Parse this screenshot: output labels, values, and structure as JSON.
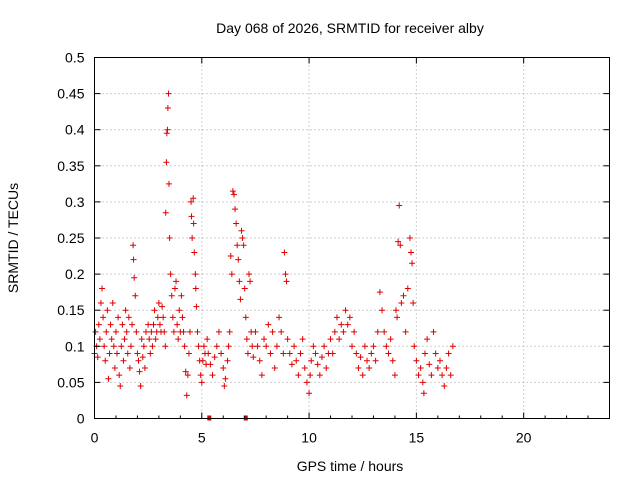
{
  "chart_data": {
    "type": "scatter",
    "title": "Day 068 of 2026, SRMTID for receiver alby",
    "xlabel": "GPS time / hours",
    "ylabel": "SRMTID / TECUs",
    "xlim": [
      0,
      24
    ],
    "ylim": [
      0,
      0.5
    ],
    "x_ticks": [
      "0",
      "5",
      "10",
      "15",
      "20"
    ],
    "y_ticks": [
      "0",
      "0.05",
      "0.1",
      "0.15",
      "0.2",
      "0.25",
      "0.3",
      "0.35",
      "0.4",
      "0.45",
      "0.5"
    ],
    "x_tick_values": [
      0,
      5,
      10,
      15,
      20
    ],
    "y_tick_values": [
      0,
      0.05,
      0.1,
      0.15,
      0.2,
      0.25,
      0.3,
      0.35,
      0.4,
      0.45,
      0.5
    ],
    "grid": true,
    "marker": "plus",
    "color": "#e00000",
    "series": [
      {
        "points": [
          [
            0.0,
            0.09
          ],
          [
            0.05,
            0.12
          ],
          [
            0.1,
            0.1
          ],
          [
            0.15,
            0.085
          ],
          [
            0.2,
            0.13
          ],
          [
            0.25,
            0.11
          ],
          [
            0.3,
            0.16
          ],
          [
            0.35,
            0.18
          ],
          [
            0.4,
            0.14
          ],
          [
            0.45,
            0.1
          ],
          [
            0.5,
            0.08
          ],
          [
            0.55,
            0.12
          ],
          [
            0.6,
            0.15
          ],
          [
            0.65,
            0.055
          ],
          [
            0.7,
            0.09
          ],
          [
            0.75,
            0.13
          ],
          [
            0.8,
            0.11
          ],
          [
            0.85,
            0.16
          ],
          [
            0.9,
            0.1
          ],
          [
            0.95,
            0.07
          ],
          [
            1.0,
            0.12
          ],
          [
            1.05,
            0.09
          ],
          [
            1.1,
            0.14
          ],
          [
            1.15,
            0.06
          ],
          [
            1.2,
            0.045
          ],
          [
            1.25,
            0.1
          ],
          [
            1.3,
            0.13
          ],
          [
            1.35,
            0.08
          ],
          [
            1.4,
            0.11
          ],
          [
            1.45,
            0.15
          ],
          [
            1.5,
            0.12
          ],
          [
            1.55,
            0.09
          ],
          [
            1.6,
            0.14
          ],
          [
            1.65,
            0.07
          ],
          [
            1.7,
            0.1
          ],
          [
            1.75,
            0.13
          ],
          [
            1.8,
            0.24
          ],
          [
            1.82,
            0.22
          ],
          [
            1.85,
            0.195
          ],
          [
            1.9,
            0.17
          ],
          [
            1.95,
            0.12
          ],
          [
            2.0,
            0.09
          ],
          [
            2.05,
            0.08
          ],
          [
            2.1,
            0.065
          ],
          [
            2.15,
            0.045
          ],
          [
            2.2,
            0.11
          ],
          [
            2.25,
            0.085
          ],
          [
            2.3,
            0.1
          ],
          [
            2.35,
            0.07
          ],
          [
            2.4,
            0.12
          ],
          [
            2.5,
            0.13
          ],
          [
            2.55,
            0.11
          ],
          [
            2.6,
            0.09
          ],
          [
            2.65,
            0.12
          ],
          [
            2.7,
            0.1
          ],
          [
            2.75,
            0.13
          ],
          [
            2.8,
            0.15
          ],
          [
            2.85,
            0.11
          ],
          [
            2.9,
            0.12
          ],
          [
            2.95,
            0.14
          ],
          [
            3.0,
            0.16
          ],
          [
            3.05,
            0.13
          ],
          [
            3.1,
            0.12
          ],
          [
            3.15,
            0.155
          ],
          [
            3.2,
            0.14
          ],
          [
            3.25,
            0.12
          ],
          [
            3.3,
            0.1
          ],
          [
            3.32,
            0.285
          ],
          [
            3.35,
            0.355
          ],
          [
            3.37,
            0.395
          ],
          [
            3.4,
            0.4
          ],
          [
            3.42,
            0.43
          ],
          [
            3.45,
            0.45
          ],
          [
            3.47,
            0.325
          ],
          [
            3.5,
            0.25
          ],
          [
            3.55,
            0.2
          ],
          [
            3.6,
            0.17
          ],
          [
            3.65,
            0.14
          ],
          [
            3.7,
            0.12
          ],
          [
            3.75,
            0.18
          ],
          [
            3.8,
            0.19
          ],
          [
            3.85,
            0.13
          ],
          [
            3.9,
            0.11
          ],
          [
            3.95,
            0.15
          ],
          [
            4.0,
            0.12
          ],
          [
            4.05,
            0.17
          ],
          [
            4.1,
            0.14
          ],
          [
            4.15,
            0.12
          ],
          [
            4.2,
            0.1
          ],
          [
            4.25,
            0.065
          ],
          [
            4.3,
            0.032
          ],
          [
            4.35,
            0.06
          ],
          [
            4.4,
            0.09
          ],
          [
            4.45,
            0.12
          ],
          [
            4.5,
            0.3
          ],
          [
            4.52,
            0.28
          ],
          [
            4.55,
            0.25
          ],
          [
            4.6,
            0.305
          ],
          [
            4.62,
            0.27
          ],
          [
            4.65,
            0.23
          ],
          [
            4.7,
            0.2
          ],
          [
            4.72,
            0.18
          ],
          [
            4.75,
            0.155
          ],
          [
            4.8,
            0.12
          ],
          [
            4.85,
            0.1
          ],
          [
            4.9,
            0.08
          ],
          [
            4.95,
            0.06
          ],
          [
            5.0,
            0.05
          ],
          [
            5.05,
            0.08
          ],
          [
            5.1,
            0.1
          ],
          [
            5.15,
            0.09
          ],
          [
            5.2,
            0.075
          ],
          [
            5.25,
            0.11
          ],
          [
            5.3,
            0.09
          ],
          [
            5.4,
            0.075
          ],
          [
            5.5,
            0.06
          ],
          [
            5.6,
            0.085
          ],
          [
            5.7,
            0.1
          ],
          [
            5.8,
            0.12
          ],
          [
            5.9,
            0.09
          ],
          [
            6.0,
            0.07
          ],
          [
            6.05,
            0.045
          ],
          [
            6.1,
            0.055
          ],
          [
            6.2,
            0.08
          ],
          [
            6.25,
            0.1
          ],
          [
            6.3,
            0.12
          ],
          [
            6.35,
            0.225
          ],
          [
            6.4,
            0.2
          ],
          [
            6.45,
            0.315
          ],
          [
            6.5,
            0.31
          ],
          [
            6.55,
            0.29
          ],
          [
            6.6,
            0.27
          ],
          [
            6.65,
            0.24
          ],
          [
            6.7,
            0.22
          ],
          [
            6.75,
            0.19
          ],
          [
            6.8,
            0.165
          ],
          [
            6.85,
            0.26
          ],
          [
            6.9,
            0.25
          ],
          [
            6.95,
            0.24
          ],
          [
            7.0,
            0.18
          ],
          [
            7.05,
            0.14
          ],
          [
            7.1,
            0.11
          ],
          [
            7.15,
            0.09
          ],
          [
            7.2,
            0.2
          ],
          [
            7.25,
            0.19
          ],
          [
            7.3,
            0.12
          ],
          [
            7.35,
            0.1
          ],
          [
            7.4,
            0.085
          ],
          [
            7.5,
            0.12
          ],
          [
            7.6,
            0.1
          ],
          [
            7.7,
            0.08
          ],
          [
            7.8,
            0.06
          ],
          [
            7.9,
            0.11
          ],
          [
            8.0,
            0.1
          ],
          [
            8.1,
            0.13
          ],
          [
            8.2,
            0.09
          ],
          [
            8.3,
            0.12
          ],
          [
            8.4,
            0.07
          ],
          [
            8.5,
            0.1
          ],
          [
            8.6,
            0.14
          ],
          [
            8.7,
            0.12
          ],
          [
            8.8,
            0.09
          ],
          [
            8.85,
            0.23
          ],
          [
            8.9,
            0.2
          ],
          [
            8.95,
            0.19
          ],
          [
            9.0,
            0.11
          ],
          [
            9.1,
            0.09
          ],
          [
            9.2,
            0.075
          ],
          [
            9.3,
            0.1
          ],
          [
            9.4,
            0.08
          ],
          [
            9.5,
            0.06
          ],
          [
            9.6,
            0.09
          ],
          [
            9.7,
            0.11
          ],
          [
            9.8,
            0.07
          ],
          [
            9.9,
            0.05
          ],
          [
            10.0,
            0.035
          ],
          [
            10.05,
            0.06
          ],
          [
            10.1,
            0.08
          ],
          [
            10.2,
            0.1
          ],
          [
            10.3,
            0.09
          ],
          [
            10.4,
            0.075
          ],
          [
            10.5,
            0.06
          ],
          [
            10.6,
            0.085
          ],
          [
            10.7,
            0.1
          ],
          [
            10.8,
            0.07
          ],
          [
            10.9,
            0.09
          ],
          [
            11.0,
            0.11
          ],
          [
            11.1,
            0.09
          ],
          [
            11.2,
            0.12
          ],
          [
            11.3,
            0.14
          ],
          [
            11.4,
            0.11
          ],
          [
            11.5,
            0.13
          ],
          [
            11.6,
            0.12
          ],
          [
            11.7,
            0.15
          ],
          [
            11.8,
            0.13
          ],
          [
            11.9,
            0.14
          ],
          [
            12.0,
            0.1
          ],
          [
            12.1,
            0.12
          ],
          [
            12.2,
            0.09
          ],
          [
            12.3,
            0.07
          ],
          [
            12.4,
            0.085
          ],
          [
            12.5,
            0.06
          ],
          [
            12.6,
            0.1
          ],
          [
            12.7,
            0.08
          ],
          [
            12.8,
            0.07
          ],
          [
            12.9,
            0.09
          ],
          [
            13.0,
            0.1
          ],
          [
            13.1,
            0.08
          ],
          [
            13.2,
            0.12
          ],
          [
            13.3,
            0.175
          ],
          [
            13.4,
            0.15
          ],
          [
            13.5,
            0.12
          ],
          [
            13.6,
            0.1
          ],
          [
            13.7,
            0.09
          ],
          [
            13.8,
            0.11
          ],
          [
            13.9,
            0.08
          ],
          [
            14.0,
            0.06
          ],
          [
            14.05,
            0.15
          ],
          [
            14.1,
            0.14
          ],
          [
            14.15,
            0.245
          ],
          [
            14.2,
            0.295
          ],
          [
            14.25,
            0.24
          ],
          [
            14.3,
            0.16
          ],
          [
            14.4,
            0.17
          ],
          [
            14.5,
            0.12
          ],
          [
            14.6,
            0.18
          ],
          [
            14.7,
            0.25
          ],
          [
            14.75,
            0.23
          ],
          [
            14.8,
            0.215
          ],
          [
            14.85,
            0.16
          ],
          [
            14.9,
            0.1
          ],
          [
            15.0,
            0.08
          ],
          [
            15.1,
            0.06
          ],
          [
            15.2,
            0.07
          ],
          [
            15.3,
            0.05
          ],
          [
            15.35,
            0.035
          ],
          [
            15.4,
            0.09
          ],
          [
            15.5,
            0.11
          ],
          [
            15.6,
            0.075
          ],
          [
            15.7,
            0.06
          ],
          [
            15.8,
            0.12
          ],
          [
            15.9,
            0.09
          ],
          [
            16.0,
            0.07
          ],
          [
            16.1,
            0.08
          ],
          [
            16.2,
            0.06
          ],
          [
            16.3,
            0.045
          ],
          [
            16.4,
            0.07
          ],
          [
            16.5,
            0.09
          ],
          [
            16.6,
            0.06
          ],
          [
            16.7,
            0.1
          ]
        ]
      }
    ],
    "zero_markers": [
      5.35,
      7.05
    ]
  }
}
